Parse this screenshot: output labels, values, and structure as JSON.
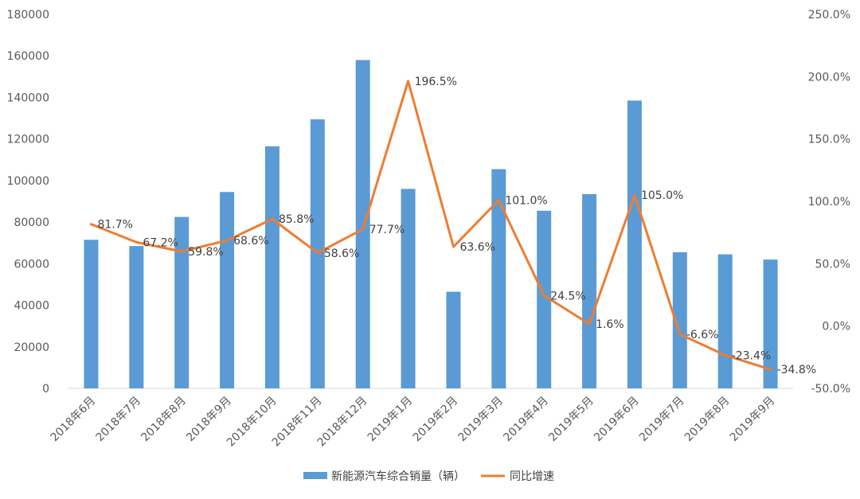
{
  "chart_data": {
    "type": "bar",
    "categories": [
      "2018年6月",
      "2018年7月",
      "2018年8月",
      "2018年9月",
      "2018年10月",
      "2018年11月",
      "2018年12月",
      "2019年1月",
      "2019年2月",
      "2019年3月",
      "2019年4月",
      "2019年5月",
      "2019年6月",
      "2019年7月",
      "2019年8月",
      "2019年9月"
    ],
    "series": [
      {
        "name": "新能源汽车综合销量（辆）",
        "type": "bar",
        "axis": "left",
        "color": "#5B9BD5",
        "values": [
          71500,
          68500,
          82500,
          94500,
          116500,
          129500,
          158000,
          96000,
          46500,
          105500,
          85500,
          93500,
          138500,
          65500,
          64500,
          62000
        ]
      },
      {
        "name": "同比增速",
        "type": "line",
        "axis": "right",
        "color": "#ED7D31",
        "values": [
          81.7,
          67.2,
          59.8,
          68.6,
          85.8,
          58.6,
          77.7,
          196.5,
          63.6,
          101.0,
          24.5,
          1.6,
          105.0,
          -6.6,
          -23.4,
          -34.8
        ],
        "labels": [
          "81.7%",
          "67.2%",
          "59.8%",
          "68.6%",
          "85.8%",
          "58.6%",
          "77.7%",
          "196.5%",
          "63.6%",
          "101.0%",
          "24.5%",
          "1.6%",
          "105.0%",
          "-6.6%",
          "-23.4%",
          "-34.8%"
        ]
      }
    ],
    "y_left": {
      "ylim": [
        0,
        180000
      ],
      "ticks": [
        "0",
        "20000",
        "40000",
        "60000",
        "80000",
        "100000",
        "120000",
        "140000",
        "160000",
        "180000"
      ]
    },
    "y_right": {
      "ylim": [
        -50,
        250
      ],
      "ticks": [
        "-50.0%",
        "0.0%",
        "50.0%",
        "100.0%",
        "150.0%",
        "200.0%",
        "250.0%"
      ]
    },
    "title": "",
    "xlabel": "",
    "ylabel": "",
    "grid": false,
    "legend_position": "bottom"
  }
}
